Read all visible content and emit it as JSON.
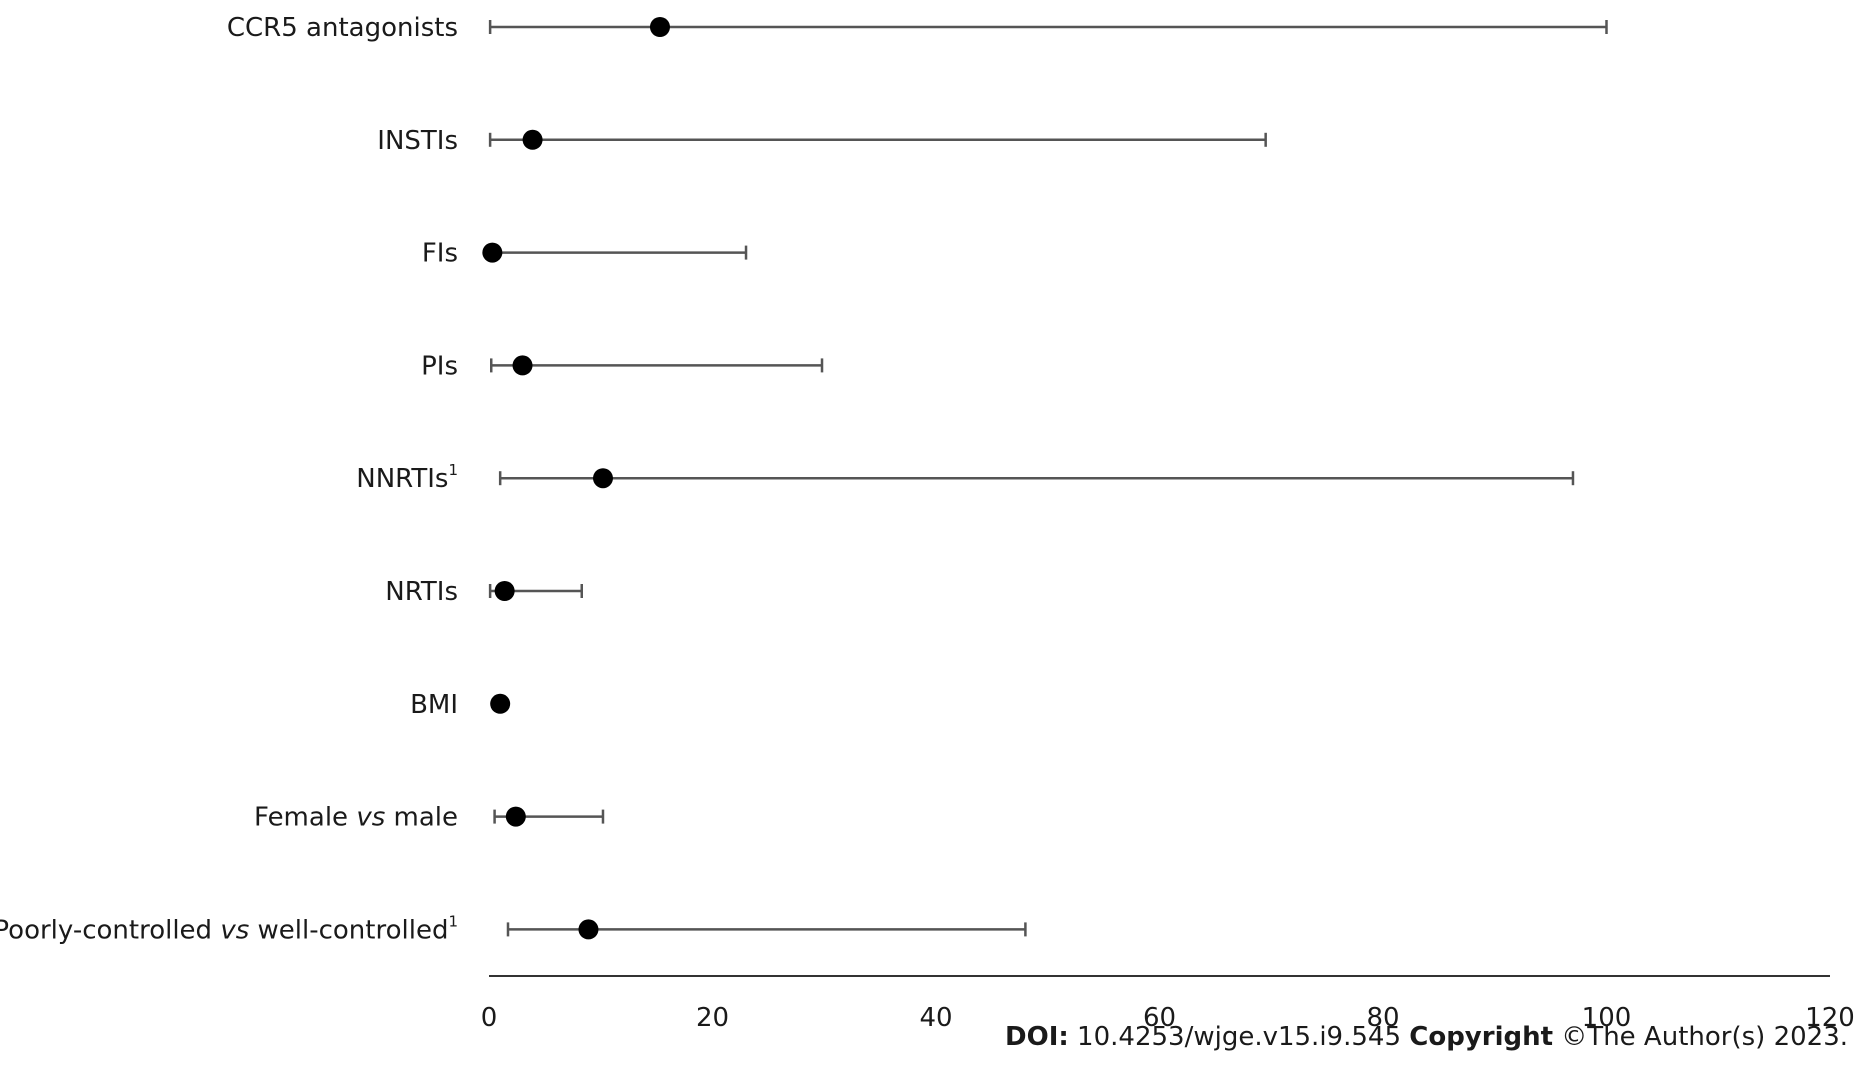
{
  "chart_data": {
    "type": "scatter",
    "subtype": "forest-plot",
    "title": "",
    "xlabel": "",
    "ylabel": "",
    "xlim": [
      0,
      120
    ],
    "xticks": [
      0,
      20,
      40,
      60,
      80,
      100,
      120
    ],
    "grid": false,
    "legend": "none",
    "rows": [
      {
        "label": "CCR5 antagonists",
        "label_italic": "",
        "label_suffix": "",
        "superscript": "",
        "estimate": 15.3,
        "lower": 0.1,
        "upper": 100.0
      },
      {
        "label": "INSTIs",
        "label_italic": "",
        "label_suffix": "",
        "superscript": "",
        "estimate": 3.9,
        "lower": 0.1,
        "upper": 69.5
      },
      {
        "label": "FIs",
        "label_italic": "",
        "label_suffix": "",
        "superscript": "",
        "estimate": 0.3,
        "lower": null,
        "upper": 23.0
      },
      {
        "label": "PIs",
        "label_italic": "",
        "label_suffix": "",
        "superscript": "",
        "estimate": 3.0,
        "lower": 0.2,
        "upper": 29.8
      },
      {
        "label": "NNRTIs",
        "label_italic": "",
        "label_suffix": "",
        "superscript": "1",
        "estimate": 10.2,
        "lower": 1.0,
        "upper": 97.0
      },
      {
        "label": "NRTIs",
        "label_italic": "",
        "label_suffix": "",
        "superscript": "",
        "estimate": 1.4,
        "lower": 0.1,
        "upper": 8.3
      },
      {
        "label": "BMI",
        "label_italic": "",
        "label_suffix": "",
        "superscript": "",
        "estimate": 1.0,
        "lower": null,
        "upper": null
      },
      {
        "label": "Female ",
        "label_italic": "vs",
        "label_suffix": " male",
        "superscript": "",
        "estimate": 2.4,
        "lower": 0.5,
        "upper": 10.2
      },
      {
        "label": "Poorly-controlled ",
        "label_italic": "vs",
        "label_suffix": " well-controlled",
        "superscript": "1",
        "estimate": 8.9,
        "lower": 1.7,
        "upper": 48.0
      }
    ]
  },
  "footer": {
    "doi_label": "DOI:",
    "doi_value": " 10.4253/wjge.v15.i9.545 ",
    "copyright_label": "Copyright",
    "copyright_value": " ©The Author(s) 2023."
  }
}
